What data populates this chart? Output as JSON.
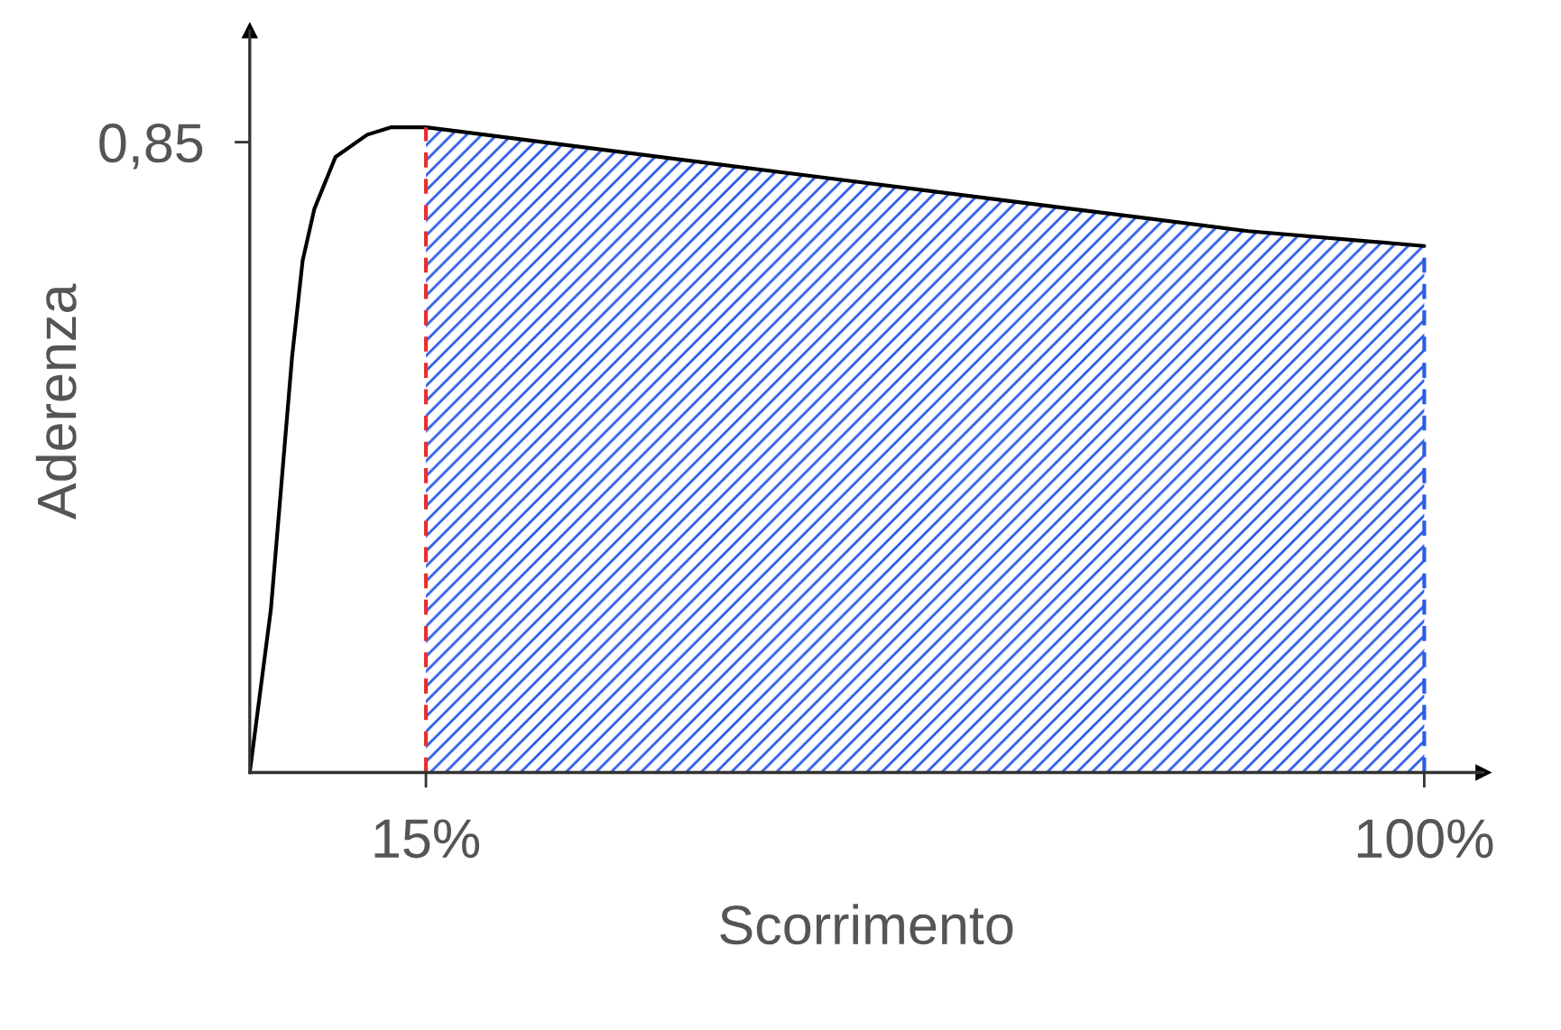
{
  "chart_data": {
    "type": "line",
    "xlabel": "Scorrimento",
    "ylabel": "Aderenza",
    "xlim": [
      0,
      105
    ],
    "ylim": [
      0,
      1.0
    ],
    "xticks": [
      {
        "value": 15,
        "label": "15%"
      },
      {
        "value": 100,
        "label": "100%"
      }
    ],
    "yticks": [
      {
        "value": 0.85,
        "label": "0,85"
      }
    ],
    "series": [
      {
        "type": "area",
        "color": "#2b5ce6",
        "x": [
          15,
          30,
          50,
          70,
          85,
          100
        ],
        "values": [
          0.87,
          0.84,
          0.8,
          0.76,
          0.73,
          0.71
        ]
      },
      {
        "color": "#000000",
        "x": [
          0,
          1.8,
          2.7,
          3.6,
          4.5,
          5.5,
          7.3,
          10,
          12,
          15,
          30,
          50,
          70,
          85,
          100
        ],
        "values": [
          0,
          0.22,
          0.39,
          0.56,
          0.69,
          0.76,
          0.83,
          0.86,
          0.87,
          0.87,
          0.84,
          0.8,
          0.76,
          0.73,
          0.71
        ]
      }
    ],
    "ref_lines": [
      {
        "axis": "x",
        "value": 15,
        "color": "#e53030",
        "line_style": "dashed"
      },
      {
        "axis": "x",
        "value": 100,
        "color": "#2b5ce6",
        "line_style": "dashed"
      }
    ],
    "grid": false,
    "legend": false,
    "marker": "none"
  }
}
